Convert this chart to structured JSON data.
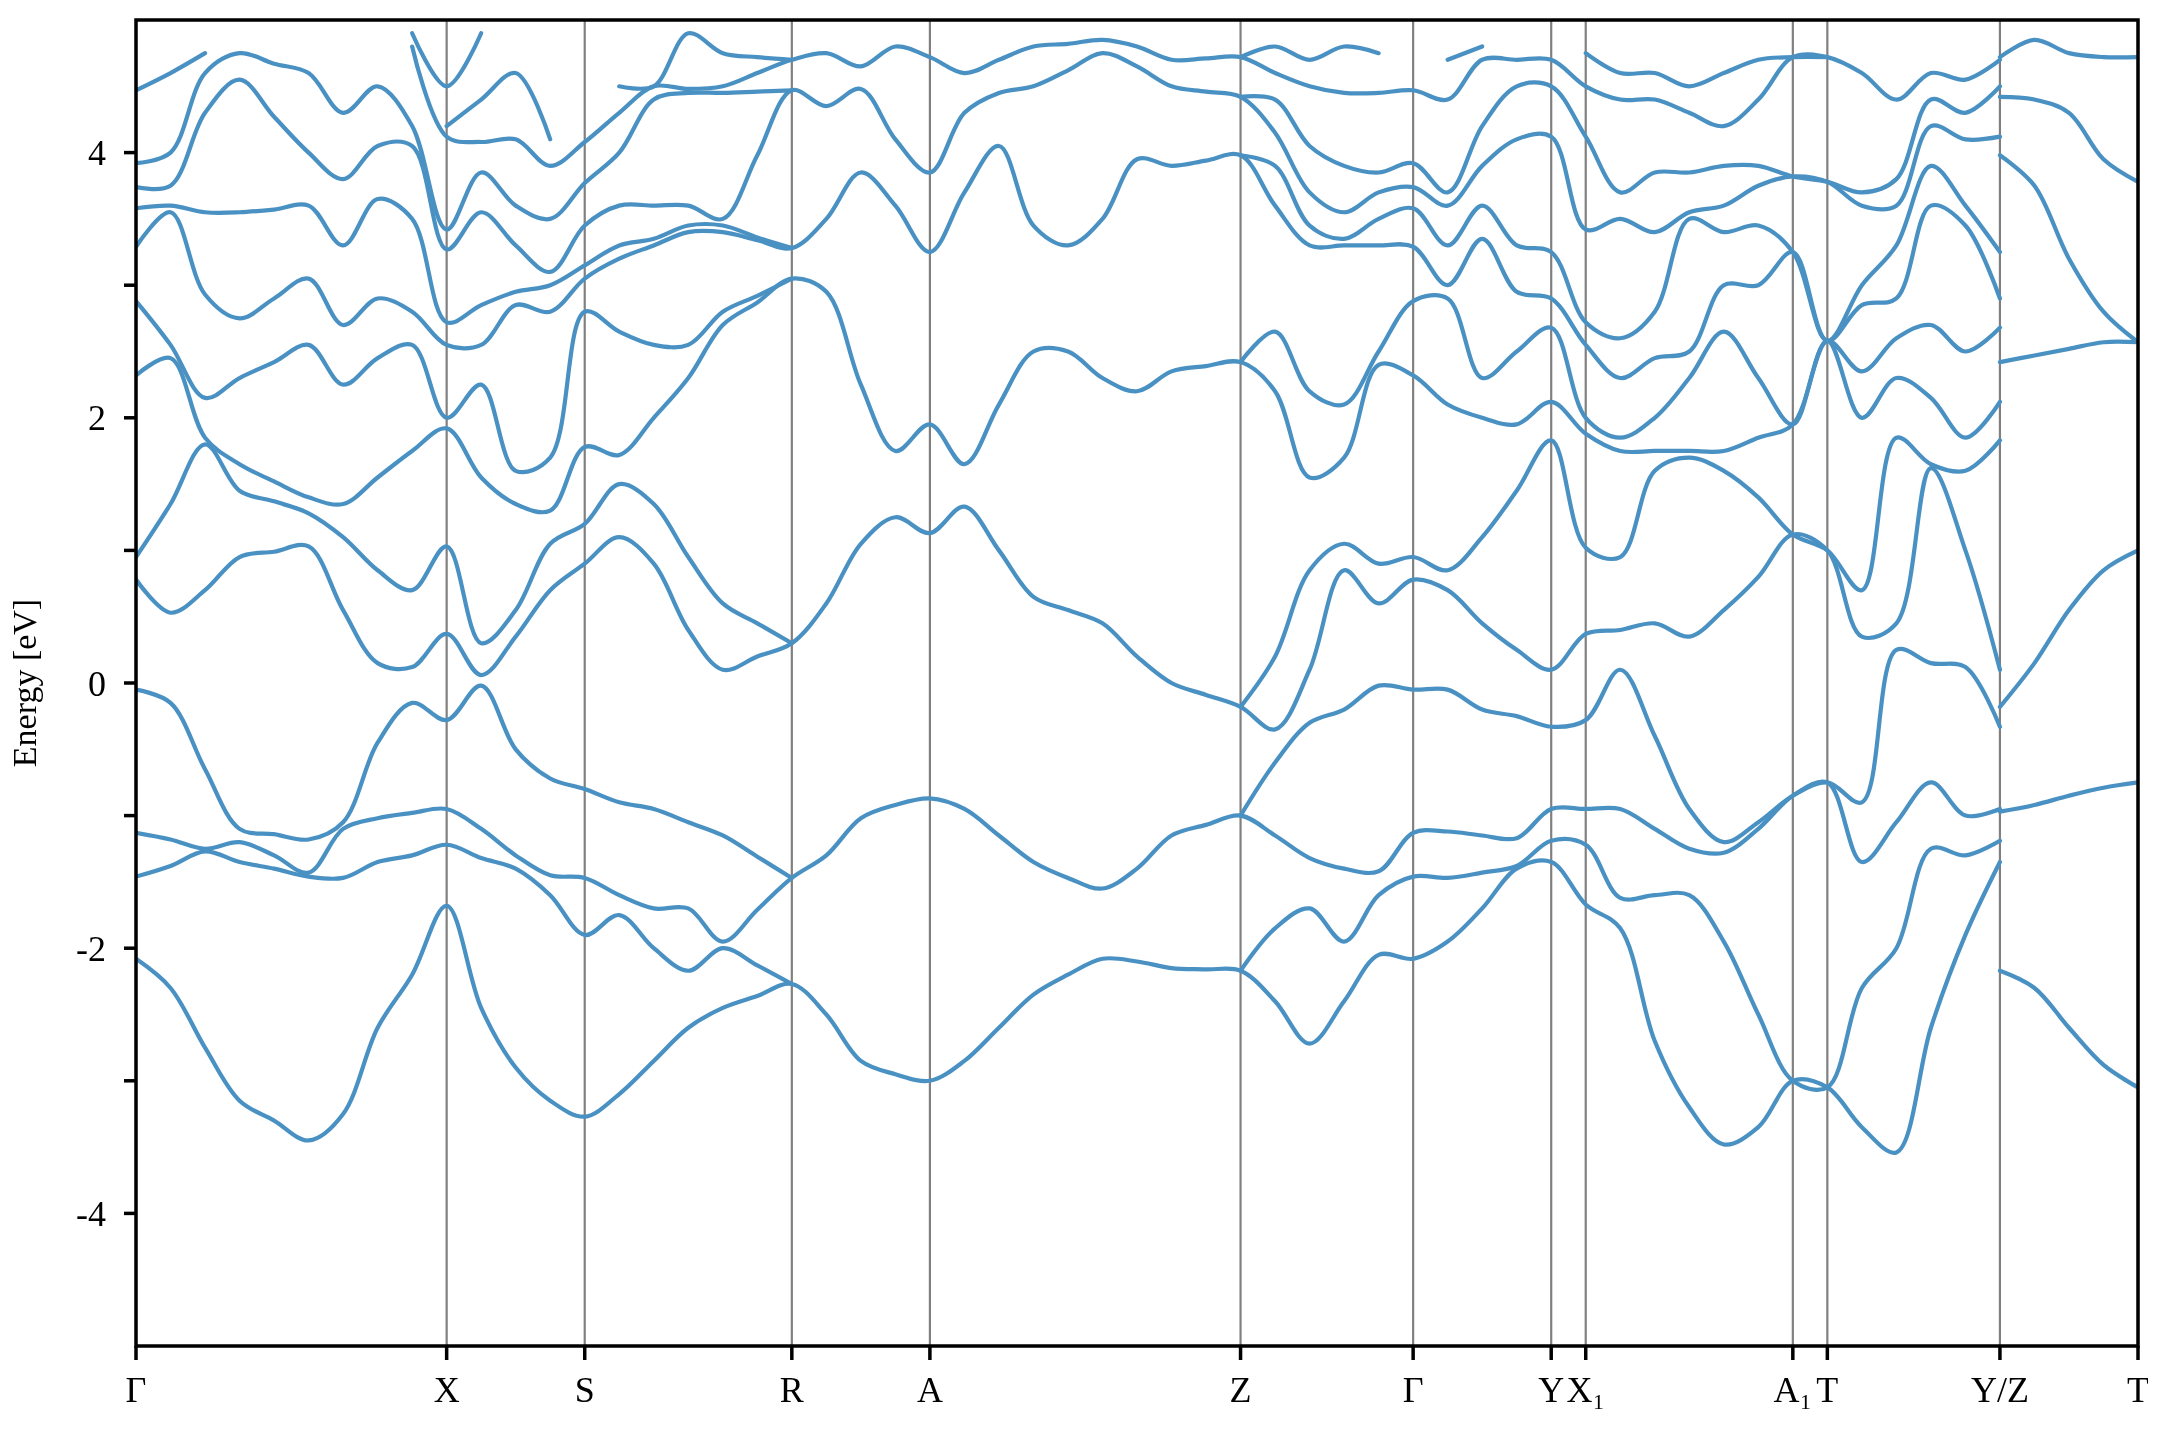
{
  "chart_data": {
    "type": "line",
    "ylabel": "Energy [eV]",
    "ylim": [
      -5,
      5
    ],
    "grid": "x",
    "yticks": [
      -4,
      {
        "value": -3,
        "label": null
      },
      -2,
      {
        "value": -1,
        "label": null
      },
      0,
      {
        "value": 1,
        "label": null
      },
      2,
      {
        "value": 3,
        "label": null
      },
      4
    ],
    "categories": [
      "Γ",
      null,
      null,
      null,
      null,
      null,
      null,
      null,
      null,
      "X",
      null,
      null,
      null,
      "S",
      null,
      null,
      null,
      null,
      null,
      "R",
      null,
      null,
      null,
      "A",
      null,
      null,
      null,
      null,
      null,
      null,
      null,
      null,
      "Z",
      null,
      null,
      null,
      null,
      "Γ",
      null,
      null,
      null,
      "Y",
      "X₁",
      null,
      null,
      null,
      null,
      null,
      "A₁",
      "T",
      null,
      null,
      null,
      null,
      "Y/Z",
      null,
      null,
      null,
      "T"
    ],
    "series": [
      {
        "color": "#4a91c3",
        "values": [
          -2.08,
          -2.3,
          -2.75,
          -3.15,
          -3.3,
          -3.45,
          -3.25,
          -2.6,
          -2.2,
          -1.68,
          -2.45,
          -2.9,
          -3.15,
          -3.27,
          -3.1,
          -2.85,
          -2.6,
          -2.45,
          -2.36,
          -2.27,
          -2.5,
          -2.85,
          -2.95,
          -3.0,
          -2.85,
          -2.6,
          -2.35,
          -2.2,
          -2.08,
          -2.1,
          -2.15,
          -2.16,
          -2.17,
          -2.4,
          -2.72,
          -2.4,
          -2.05,
          -2.08,
          -1.95,
          -1.7,
          -1.4,
          -1.35,
          -1.67,
          -1.85,
          -2.7,
          -3.2,
          -3.48,
          -3.35,
          -3.0,
          -3.05,
          -3.35,
          -3.54,
          -2.6,
          -1.9,
          -1.35,
          null,
          null,
          null,
          null
        ]
      },
      {
        "color": "#4a91c3",
        "values": [
          -1.46,
          -1.38,
          -1.27,
          -1.35,
          -1.4,
          -1.46,
          -1.47,
          -1.35,
          -1.3,
          -1.22,
          -1.32,
          -1.4,
          -1.6,
          -1.9,
          -1.75,
          -2.0,
          -2.17,
          -2.0,
          -2.13,
          -2.27,
          null,
          null,
          null,
          null,
          null,
          null,
          null,
          null,
          null,
          null,
          null,
          null,
          -2.17,
          -1.85,
          -1.7,
          -1.95,
          -1.6,
          -1.46,
          -1.47,
          -1.43,
          -1.38,
          -1.19,
          -1.22,
          -1.62,
          -1.6,
          -1.6,
          -1.95,
          -2.5,
          -3.0,
          -3.05,
          -2.3,
          -2.0,
          -1.25,
          -1.3,
          -1.19,
          null,
          null,
          null,
          null
        ]
      },
      {
        "color": "#4a91c3",
        "values": [
          -1.13,
          -1.18,
          -1.25,
          -1.2,
          -1.3,
          -1.43,
          -1.1,
          -1.02,
          -0.98,
          -0.95,
          -1.1,
          -1.3,
          -1.45,
          -1.47,
          -1.6,
          -1.7,
          -1.7,
          -1.95,
          -1.71,
          -1.47,
          -1.3,
          -1.02,
          -0.92,
          -0.87,
          -0.95,
          -1.15,
          -1.35,
          -1.47,
          -1.55,
          -1.4,
          -1.15,
          -1.07,
          -1.0,
          -1.15,
          -1.32,
          -1.4,
          -1.42,
          -1.13,
          -1.12,
          -1.15,
          -1.17,
          -0.95,
          -0.95,
          -0.95,
          -1.1,
          -1.25,
          -1.28,
          -1.1,
          -0.85,
          -0.75,
          -1.35,
          -1.05,
          -0.75,
          -1.0,
          -0.95,
          null,
          null,
          null,
          null
        ]
      },
      {
        "color": "#4a91c3",
        "values": [
          -0.05,
          -0.15,
          -0.65,
          -1.1,
          -1.14,
          -1.18,
          -1.05,
          -0.45,
          -0.15,
          -0.28,
          -0.02,
          -0.5,
          -0.72,
          -0.8,
          -0.9,
          -0.95,
          -1.05,
          -1.15,
          -1.31,
          -1.47,
          null,
          null,
          null,
          null,
          null,
          null,
          null,
          null,
          null,
          null,
          null,
          null,
          -1.0,
          -0.6,
          -0.3,
          -0.2,
          -0.02,
          -0.05,
          -0.05,
          -0.2,
          -0.25,
          -0.33,
          -0.28,
          0.1,
          -0.4,
          -0.95,
          -1.2,
          -1.05,
          -0.85,
          -0.75,
          -0.9,
          0.25,
          0.15,
          0.12,
          -0.33,
          null,
          null,
          null,
          null
        ]
      },
      {
        "color": "#4a91c3",
        "values": [
          0.78,
          0.53,
          0.7,
          0.95,
          0.99,
          1.03,
          0.55,
          0.15,
          0.12,
          0.37,
          0.06,
          0.35,
          0.7,
          0.9,
          1.1,
          0.9,
          0.4,
          0.1,
          0.2,
          0.3,
          0.6,
          1.05,
          1.25,
          1.13,
          1.33,
          1.0,
          0.65,
          0.55,
          0.45,
          0.2,
          0.0,
          -0.09,
          -0.18,
          -0.35,
          0.1,
          0.85,
          0.6,
          0.78,
          0.7,
          0.45,
          0.25,
          0.1,
          0.37,
          0.4,
          0.45,
          0.35,
          0.55,
          0.8,
          1.12,
          1.0,
          0.35,
          0.45,
          1.62,
          1.0,
          0.1,
          null,
          null,
          null,
          null
        ]
      },
      {
        "color": "#4a91c3",
        "values": [
          0.95,
          1.35,
          1.8,
          1.45,
          1.37,
          1.28,
          1.1,
          0.85,
          0.7,
          1.03,
          0.3,
          0.55,
          1.05,
          1.2,
          1.5,
          1.35,
          0.95,
          0.6,
          0.45,
          0.3,
          null,
          null,
          null,
          null,
          null,
          null,
          null,
          null,
          null,
          null,
          null,
          null,
          -0.18,
          0.2,
          0.85,
          1.05,
          0.9,
          0.95,
          0.85,
          1.1,
          1.45,
          1.83,
          1.02,
          0.95,
          1.6,
          1.7,
          1.6,
          1.4,
          1.12,
          1.0,
          0.7,
          1.85,
          1.65,
          1.6,
          1.83,
          null,
          null,
          null,
          null
        ]
      },
      {
        "color": "#4a91c3",
        "values": [
          2.32,
          2.45,
          1.85,
          1.65,
          1.52,
          1.4,
          1.35,
          1.55,
          1.75,
          1.92,
          1.55,
          1.35,
          1.3,
          1.78,
          1.72,
          2.0,
          2.3,
          2.7,
          2.87,
          3.05,
          2.95,
          2.25,
          1.75,
          1.95,
          1.65,
          2.1,
          2.5,
          2.5,
          2.3,
          2.2,
          2.35,
          2.39,
          2.42,
          2.2,
          1.55,
          1.7,
          2.4,
          2.32,
          2.1,
          2.0,
          1.95,
          2.12,
          1.88,
          1.75,
          1.75,
          1.75,
          1.75,
          1.85,
          1.95,
          2.58,
          2.0,
          2.3,
          2.15,
          1.85,
          2.12,
          null,
          null,
          null,
          null
        ]
      },
      {
        "color": "#4a91c3",
        "values": [
          2.88,
          2.55,
          2.15,
          2.3,
          2.42,
          2.55,
          2.25,
          2.45,
          2.55,
          2.0,
          2.25,
          1.6,
          1.7,
          2.8,
          2.65,
          2.55,
          2.55,
          2.8,
          2.92,
          3.05,
          null,
          null,
          null,
          null,
          null,
          null,
          null,
          null,
          null,
          null,
          null,
          null,
          2.42,
          2.65,
          2.2,
          2.1,
          2.5,
          2.88,
          2.9,
          2.3,
          2.5,
          2.68,
          2.0,
          1.85,
          2.0,
          2.3,
          2.65,
          2.3,
          1.95,
          2.58,
          2.35,
          2.6,
          2.7,
          2.5,
          2.68,
          null,
          null,
          null,
          null
        ]
      },
      {
        "color": "#4a91c3",
        "values": [
          3.29,
          3.55,
          2.93,
          2.75,
          2.9,
          3.05,
          2.7,
          2.9,
          2.8,
          2.55,
          2.55,
          2.85,
          2.8,
          3.05,
          3.2,
          3.3,
          3.4,
          3.4,
          3.34,
          3.28,
          3.5,
          3.85,
          3.6,
          3.25,
          3.7,
          4.05,
          3.45,
          3.3,
          3.5,
          3.95,
          3.9,
          3.94,
          3.98,
          3.6,
          3.3,
          3.3,
          3.3,
          3.29,
          3.0,
          3.35,
          2.95,
          2.9,
          2.55,
          2.3,
          2.45,
          2.5,
          3.0,
          3.0,
          3.25,
          2.58,
          2.85,
          2.9,
          3.6,
          3.45,
          2.9,
          null,
          null,
          null,
          null
        ]
      },
      {
        "color": "#4a91c3",
        "values": [
          3.58,
          3.6,
          3.55,
          3.55,
          3.57,
          3.6,
          3.3,
          3.65,
          3.5,
          2.72,
          2.85,
          2.95,
          3.0,
          3.15,
          3.3,
          3.35,
          3.45,
          3.45,
          3.36,
          3.28,
          null,
          null,
          null,
          null,
          null,
          null,
          null,
          null,
          null,
          null,
          null,
          null,
          3.98,
          3.9,
          3.45,
          3.35,
          3.5,
          3.58,
          3.3,
          3.6,
          3.3,
          3.25,
          2.72,
          2.6,
          2.8,
          3.5,
          3.4,
          3.45,
          3.25,
          2.58,
          3.0,
          3.3,
          3.9,
          3.6,
          3.25,
          null,
          null,
          null,
          null
        ]
      },
      {
        "color": "#4a91c3",
        "values": [
          3.74,
          3.75,
          4.3,
          4.55,
          4.27,
          4.0,
          3.8,
          4.05,
          4.05,
          3.27,
          3.55,
          3.3,
          3.1,
          3.45,
          3.6,
          3.6,
          3.6,
          3.5,
          3.98,
          4.47,
          4.35,
          4.48,
          4.1,
          3.85,
          4.3,
          4.45,
          4.5,
          4.62,
          4.75,
          4.65,
          4.5,
          4.46,
          4.42,
          4.15,
          3.7,
          3.55,
          3.7,
          3.74,
          3.6,
          3.9,
          4.1,
          4.12,
          3.42,
          3.5,
          3.4,
          3.55,
          3.6,
          3.75,
          3.82,
          3.78,
          3.6,
          3.6,
          4.2,
          4.1,
          4.12,
          null,
          null,
          null,
          null
        ]
      },
      {
        "color": "#4a91c3",
        "values": [
          3.92,
          4.0,
          4.6,
          4.75,
          4.67,
          4.6,
          4.3,
          4.5,
          4.2,
          3.42,
          3.85,
          3.6,
          3.5,
          3.77,
          4.0,
          4.4,
          4.45,
          4.45,
          4.46,
          4.47,
          null,
          null,
          null,
          null,
          null,
          null,
          null,
          null,
          null,
          null,
          null,
          null,
          4.42,
          4.4,
          4.05,
          3.9,
          3.85,
          3.92,
          3.7,
          4.2,
          4.5,
          4.5,
          4.12,
          3.7,
          3.85,
          3.85,
          3.9,
          3.9,
          3.82,
          3.78,
          3.7,
          3.8,
          4.4,
          4.3,
          4.5,
          null,
          null,
          null,
          null
        ]
      },
      {
        "color": "#4a91c3",
        "values": [
          4.47,
          4.6,
          4.75,
          null,
          null,
          null,
          null,
          null,
          4.8,
          4.12,
          4.08,
          4.1,
          3.9,
          4.08,
          4.3,
          4.5,
          4.48,
          4.5,
          4.6,
          4.7,
          4.75,
          4.65,
          4.8,
          4.72,
          4.6,
          4.7,
          4.8,
          4.82,
          4.85,
          4.8,
          4.7,
          4.71,
          4.72,
          4.6,
          4.5,
          4.45,
          4.45,
          4.47,
          4.4,
          4.7,
          4.7,
          4.7,
          4.5,
          4.4,
          4.4,
          4.3,
          4.2,
          4.4,
          4.72,
          4.72,
          4.6,
          4.4,
          4.6,
          4.55,
          4.7,
          null,
          null,
          null,
          null
        ]
      },
      {
        "color": "#4a91c3",
        "values": [
          null,
          null,
          null,
          null,
          null,
          null,
          null,
          null,
          null,
          4.2,
          4.4,
          4.6,
          4.1,
          null,
          4.5,
          4.5,
          4.9,
          4.75,
          4.72,
          4.7,
          null,
          null,
          null,
          null,
          null,
          null,
          null,
          null,
          null,
          null,
          null,
          null,
          4.72,
          4.8,
          4.7,
          4.8,
          4.75,
          null,
          4.7,
          4.8,
          null,
          null,
          4.75,
          4.6,
          4.6,
          4.5,
          4.6,
          4.7,
          4.72,
          4.72,
          null,
          null,
          null,
          null,
          null,
          null,
          null,
          null,
          null
        ]
      },
      {
        "color": "#4a91c3",
        "values": [
          null,
          null,
          null,
          null,
          null,
          null,
          null,
          null,
          4.9,
          4.5,
          4.9,
          null,
          null,
          null,
          null,
          null,
          null,
          null,
          null,
          null,
          null,
          null,
          null,
          null,
          null,
          null,
          null,
          null,
          null,
          null,
          null,
          null,
          null,
          null,
          null,
          null,
          null,
          null,
          null,
          null,
          null,
          null,
          null,
          null,
          null,
          null,
          null,
          null,
          null,
          null,
          null,
          null,
          null,
          null,
          null,
          null,
          null,
          null,
          null
        ]
      },
      {
        "color": "#4a91c3",
        "values": [
          null,
          null,
          null,
          null,
          null,
          null,
          null,
          null,
          null,
          null,
          null,
          null,
          null,
          null,
          null,
          null,
          null,
          null,
          null,
          null,
          null,
          null,
          null,
          null,
          null,
          null,
          null,
          null,
          null,
          null,
          null,
          null,
          null,
          null,
          null,
          null,
          null,
          null,
          null,
          null,
          null,
          null,
          null,
          null,
          null,
          null,
          null,
          null,
          null,
          null,
          null,
          null,
          null,
          null,
          -2.17,
          -2.3,
          -2.6,
          -2.88,
          -3.05
        ]
      },
      {
        "color": "#4a91c3",
        "values": [
          null,
          null,
          null,
          null,
          null,
          null,
          null,
          null,
          null,
          null,
          null,
          null,
          null,
          null,
          null,
          null,
          null,
          null,
          null,
          null,
          null,
          null,
          null,
          null,
          null,
          null,
          null,
          null,
          null,
          null,
          null,
          null,
          null,
          null,
          null,
          null,
          null,
          null,
          null,
          null,
          null,
          null,
          null,
          null,
          null,
          null,
          null,
          null,
          null,
          null,
          null,
          null,
          null,
          null,
          -0.97,
          -0.92,
          -0.85,
          -0.79,
          -0.75
        ]
      },
      {
        "color": "#4a91c3",
        "values": [
          null,
          null,
          null,
          null,
          null,
          null,
          null,
          null,
          null,
          null,
          null,
          null,
          null,
          null,
          null,
          null,
          null,
          null,
          null,
          null,
          null,
          null,
          null,
          null,
          null,
          null,
          null,
          null,
          null,
          null,
          null,
          null,
          null,
          null,
          null,
          null,
          null,
          null,
          null,
          null,
          null,
          null,
          null,
          null,
          null,
          null,
          null,
          null,
          null,
          null,
          null,
          null,
          null,
          null,
          -0.18,
          0.15,
          0.55,
          0.85,
          1.0
        ]
      },
      {
        "color": "#4a91c3",
        "values": [
          null,
          null,
          null,
          null,
          null,
          null,
          null,
          null,
          null,
          null,
          null,
          null,
          null,
          null,
          null,
          null,
          null,
          null,
          null,
          null,
          null,
          null,
          null,
          null,
          null,
          null,
          null,
          null,
          null,
          null,
          null,
          null,
          null,
          null,
          null,
          null,
          null,
          null,
          null,
          null,
          null,
          null,
          null,
          null,
          null,
          null,
          null,
          null,
          null,
          null,
          null,
          null,
          null,
          null,
          2.42,
          2.47,
          2.52,
          2.57,
          2.57
        ]
      },
      {
        "color": "#4a91c3",
        "values": [
          null,
          null,
          null,
          null,
          null,
          null,
          null,
          null,
          null,
          null,
          null,
          null,
          null,
          null,
          null,
          null,
          null,
          null,
          null,
          null,
          null,
          null,
          null,
          null,
          null,
          null,
          null,
          null,
          null,
          null,
          null,
          null,
          null,
          null,
          null,
          null,
          null,
          null,
          null,
          null,
          null,
          null,
          null,
          null,
          null,
          null,
          null,
          null,
          null,
          null,
          null,
          null,
          null,
          null,
          3.98,
          3.75,
          3.2,
          2.8,
          2.57
        ]
      },
      {
        "color": "#4a91c3",
        "values": [
          null,
          null,
          null,
          null,
          null,
          null,
          null,
          null,
          null,
          null,
          null,
          null,
          null,
          null,
          null,
          null,
          null,
          null,
          null,
          null,
          null,
          null,
          null,
          null,
          null,
          null,
          null,
          null,
          null,
          null,
          null,
          null,
          null,
          null,
          null,
          null,
          null,
          null,
          null,
          null,
          null,
          null,
          null,
          null,
          null,
          null,
          null,
          null,
          null,
          null,
          null,
          null,
          null,
          null,
          4.42,
          4.4,
          4.3,
          3.95,
          3.78
        ]
      },
      {
        "color": "#4a91c3",
        "values": [
          null,
          null,
          null,
          null,
          null,
          null,
          null,
          null,
          null,
          null,
          null,
          null,
          null,
          null,
          null,
          null,
          null,
          null,
          null,
          null,
          null,
          null,
          null,
          null,
          null,
          null,
          null,
          null,
          null,
          null,
          null,
          null,
          null,
          null,
          null,
          null,
          null,
          null,
          null,
          null,
          null,
          null,
          null,
          null,
          null,
          null,
          null,
          null,
          null,
          null,
          null,
          null,
          null,
          null,
          4.72,
          4.85,
          4.75,
          4.72,
          4.72
        ]
      }
    ]
  }
}
